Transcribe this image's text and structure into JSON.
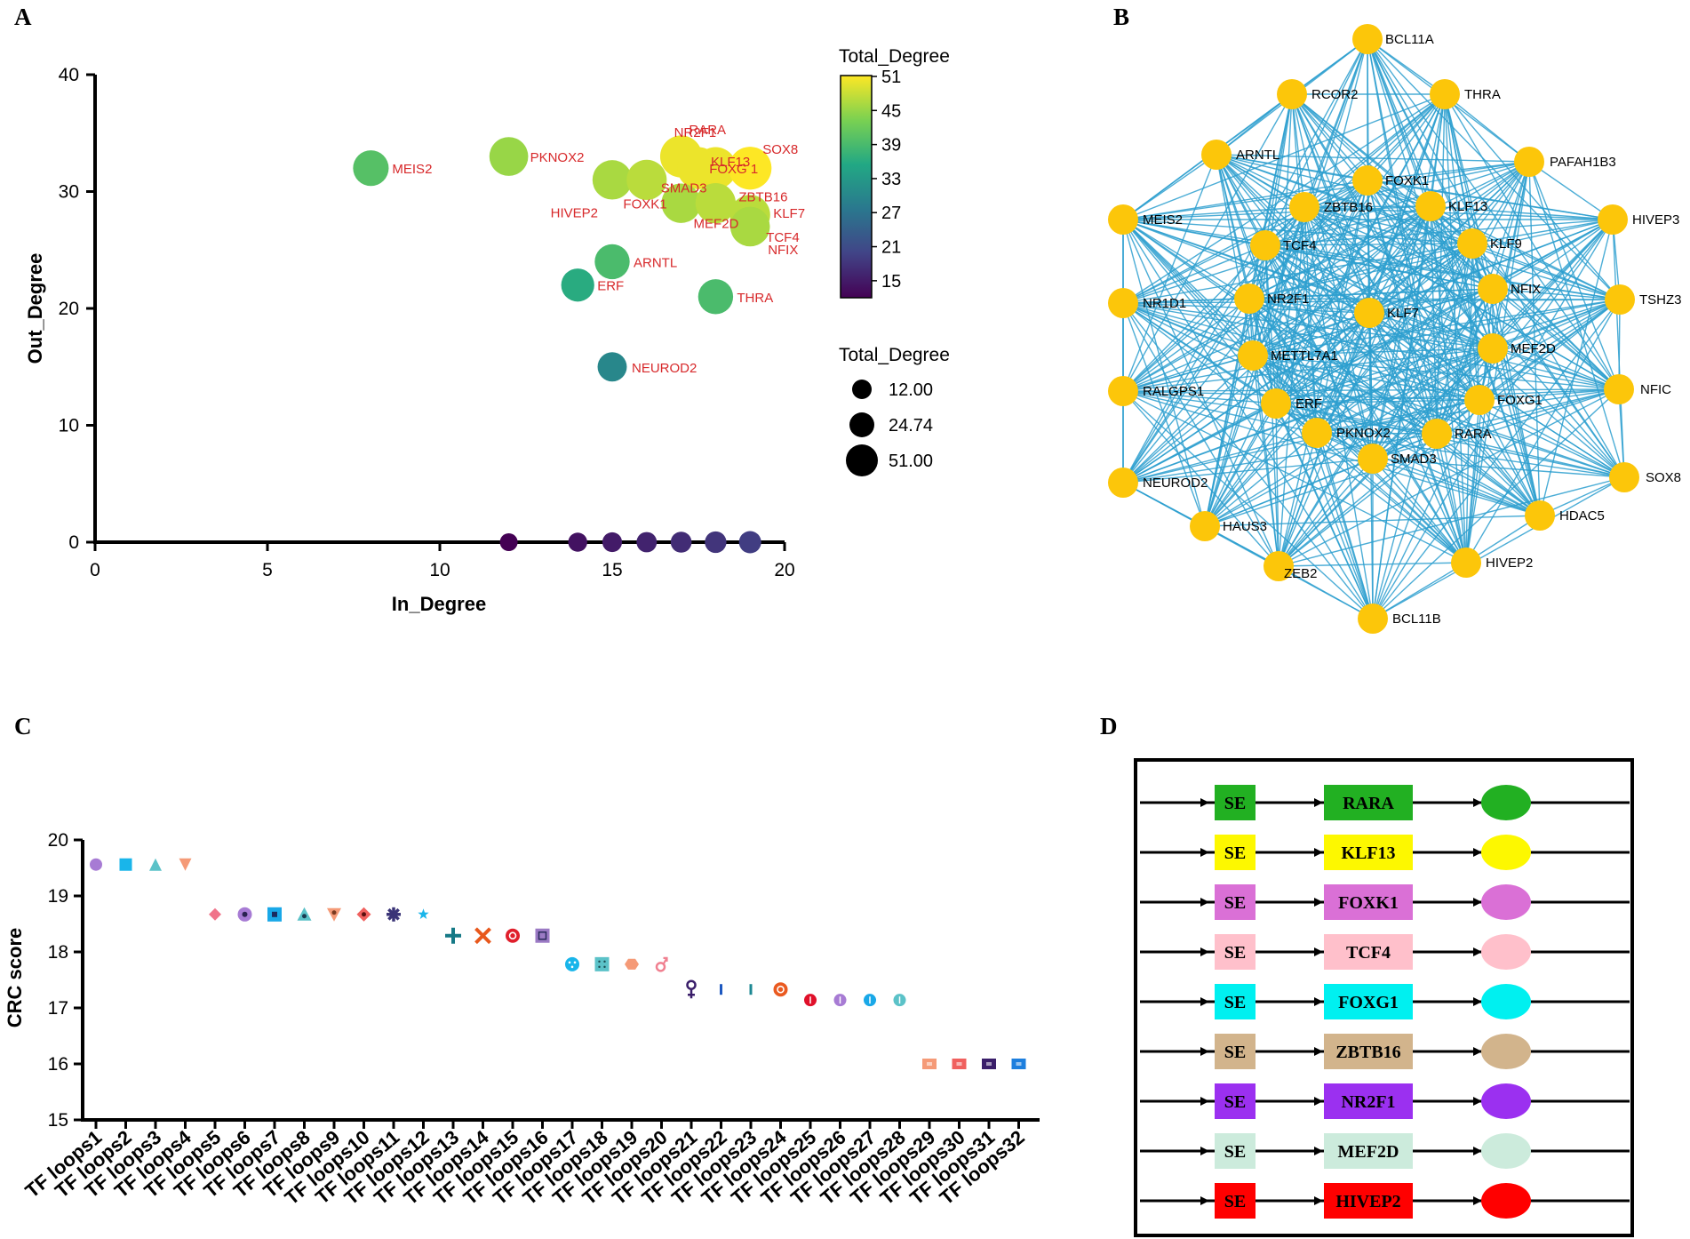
{
  "panels": [
    "A",
    "B",
    "C",
    "D"
  ],
  "chart_data": [
    {
      "panel": "A",
      "type": "scatter",
      "xlabel": "In_Degree",
      "ylabel": "Out_Degree",
      "xlim": [
        0,
        20
      ],
      "ylim": [
        0,
        40
      ],
      "xticks": [
        0,
        5,
        10,
        15,
        20
      ],
      "yticks": [
        0,
        10,
        20,
        30,
        40
      ],
      "color_legend": {
        "title": "Total_Degree",
        "ticks": [
          "51",
          "45",
          "39",
          "33",
          "27",
          "21",
          "15"
        ],
        "min": 12,
        "max": 51
      },
      "size_legend": {
        "title": "Total_Degree",
        "entries": [
          "12.00",
          "24.74",
          "51.00"
        ],
        "values": [
          12,
          24.74,
          51
        ]
      },
      "points": [
        {
          "label": "MEIS2",
          "x": 8,
          "y": 32,
          "total": 40
        },
        {
          "label": "PKNOX2",
          "x": 12,
          "y": 33,
          "total": 45
        },
        {
          "label": "HIVEP2",
          "x": 15,
          "y": 31,
          "total": 46
        },
        {
          "label": "SMAD3",
          "x": 16,
          "y": 31,
          "total": 47
        },
        {
          "label": "NR2F1",
          "x": 17,
          "y": 33,
          "total": 50
        },
        {
          "label": "RARA",
          "x": 18,
          "y": 32,
          "total": 50
        },
        {
          "label": "KLF13",
          "x": 17.5,
          "y": 32,
          "total": 50
        },
        {
          "label": "FOXG 1",
          "x": 19,
          "y": 32,
          "total": 51
        },
        {
          "label": "SOX8",
          "x": 19,
          "y": 32,
          "total": 51
        },
        {
          "label": "FOXK1",
          "x": 17,
          "y": 29,
          "total": 46
        },
        {
          "label": "ZBTB16",
          "x": 18,
          "y": 29,
          "total": 47
        },
        {
          "label": "MEF2D",
          "x": 18,
          "y": 29,
          "total": 47
        },
        {
          "label": "KLF7",
          "x": 19,
          "y": 28,
          "total": 47
        },
        {
          "label": "TCF4",
          "x": 19,
          "y": 27,
          "total": 46
        },
        {
          "label": "NFIX",
          "x": 19,
          "y": 27,
          "total": 46
        },
        {
          "label": "ARNTL",
          "x": 15,
          "y": 24,
          "total": 39
        },
        {
          "label": "ERF",
          "x": 14,
          "y": 22,
          "total": 36
        },
        {
          "label": "THRA",
          "x": 18,
          "y": 21,
          "total": 39
        },
        {
          "label": "NEUROD2",
          "x": 15,
          "y": 15,
          "total": 30
        },
        {
          "label": "",
          "x": 12,
          "y": 0,
          "total": 12
        },
        {
          "label": "",
          "x": 14,
          "y": 0,
          "total": 14
        },
        {
          "label": "",
          "x": 15,
          "y": 0,
          "total": 15
        },
        {
          "label": "",
          "x": 16,
          "y": 0,
          "total": 16
        },
        {
          "label": "",
          "x": 17,
          "y": 0,
          "total": 17
        },
        {
          "label": "",
          "x": 18,
          "y": 0,
          "total": 18
        },
        {
          "label": "",
          "x": 19,
          "y": 0,
          "total": 19
        }
      ]
    },
    {
      "panel": "B",
      "type": "network",
      "node_color": "#fcc60a",
      "edge_color": "#2d9fcf",
      "outer_nodes": [
        "BCL11A",
        "THRA",
        "PAFAH1B3",
        "HIVEP3",
        "TSHZ3",
        "NFIC",
        "SOX8",
        "HDAC5",
        "HIVEP2",
        "BCL11B",
        "ZEB2",
        "HAUS3",
        "NEUROD2",
        "RALGPS1",
        "NR1D1",
        "MEIS2",
        "ARNTL",
        "RCOR2"
      ],
      "inner_nodes": [
        "FOXK1",
        "KLF13",
        "KLF9",
        "NFIX",
        "MEF2D",
        "FOXG1",
        "RARA",
        "SMAD3",
        "PKNOX2",
        "ERF",
        "METTL7A1",
        "NR2F1",
        "TCF4",
        "ZBTB16",
        "KLF7"
      ]
    },
    {
      "panel": "C",
      "type": "scatter",
      "ylabel": "CRC score",
      "ylim": [
        15,
        20
      ],
      "yticks": [
        15,
        16,
        17,
        18,
        19,
        20
      ],
      "categories": [
        "TF loops1",
        "TF loops2",
        "TF loops3",
        "TF loops4",
        "TF loops5",
        "TF loops6",
        "TF loops7",
        "TF loops8",
        "TF loops9",
        "TF loops10",
        "TF loops11",
        "TF loops12",
        "TF loops13",
        "TF loops14",
        "TF loops15",
        "TF loops16",
        "TF loops17",
        "TF loops18",
        "TF loops19",
        "TF loops20",
        "TF loops21",
        "TF loops22",
        "TF loops23",
        "TF loops24",
        "TF loops25",
        "TF loops26",
        "TF loops27",
        "TF loops28",
        "TF loops29",
        "TF loops30",
        "TF loops31",
        "TF loops32"
      ],
      "values": [
        19.56,
        19.56,
        19.56,
        19.56,
        18.67,
        18.67,
        18.67,
        18.67,
        18.67,
        18.67,
        18.67,
        18.67,
        18.29,
        18.29,
        18.29,
        18.29,
        17.78,
        17.78,
        17.78,
        17.78,
        17.33,
        17.33,
        17.33,
        17.33,
        17.14,
        17.14,
        17.14,
        17.14,
        16.0,
        16.0,
        16.0,
        16.0
      ],
      "markers": [
        "circle",
        "square",
        "triangle",
        "tri-down",
        "diamond",
        "circle-dot",
        "square-dot",
        "triangle-dot",
        "tri-down-dot",
        "diamond-dot",
        "asterisk",
        "star",
        "plus",
        "cross",
        "circle-ring",
        "square-ring",
        "circle-dots",
        "square-dots",
        "hexagon",
        "male",
        "female",
        "bar",
        "bar",
        "circle-ring",
        "circle-line",
        "circle-line",
        "circle-line",
        "circle-line",
        "rect-line",
        "rect-line",
        "rect-line",
        "rect-line"
      ],
      "colors": [
        "#a77bd4",
        "#19b5ea",
        "#5bc2c8",
        "#f59a77",
        "#f0748a",
        "#a77bd4",
        "#19a8e8",
        "#5bc2c8",
        "#f59a77",
        "#f0605e",
        "#3a3477",
        "#19b5ea",
        "#157986",
        "#e8581c",
        "#e01f2c",
        "#9b7ac4",
        "#19b5ea",
        "#5bc2c8",
        "#f59a77",
        "#f08090",
        "#3a1e6a",
        "#1d58c0",
        "#1d8893",
        "#ea5a20",
        "#e0102a",
        "#a77bd4",
        "#19a8e8",
        "#5bc2c8",
        "#f59a77",
        "#f0605e",
        "#3a1e6a",
        "#1d7fde"
      ]
    },
    {
      "panel": "D",
      "type": "diagram",
      "rows": [
        {
          "se": "SE",
          "gene": "RARA",
          "color": "#22b022"
        },
        {
          "se": "SE",
          "gene": "KLF13",
          "color": "#fdf800"
        },
        {
          "se": "SE",
          "gene": "FOXK1",
          "color": "#da70d6"
        },
        {
          "se": "SE",
          "gene": "TCF4",
          "color": "#ffc0cb"
        },
        {
          "se": "SE",
          "gene": "FOXG1",
          "color": "#00f0f0"
        },
        {
          "se": "SE",
          "gene": "ZBTB16",
          "color": "#d2b48c"
        },
        {
          "se": "SE",
          "gene": "NR2F1",
          "color": "#9b30f0"
        },
        {
          "se": "SE",
          "gene": "MEF2D",
          "color": "#ccebdc"
        },
        {
          "se": "SE",
          "gene": "HIVEP2",
          "color": "#ff0000"
        }
      ]
    }
  ]
}
